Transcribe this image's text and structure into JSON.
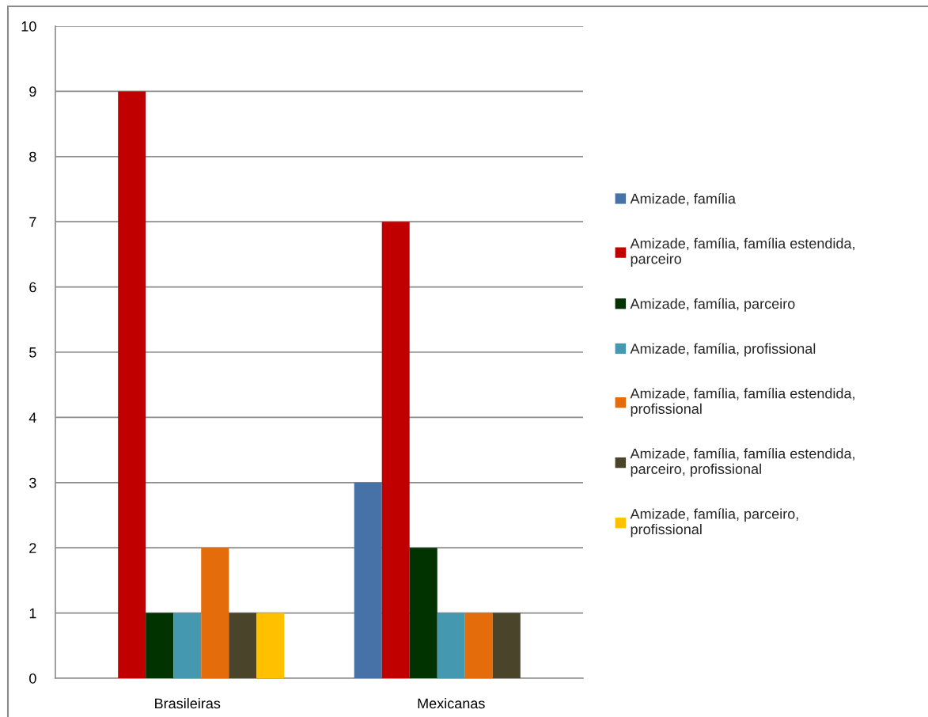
{
  "chart_data": {
    "type": "bar",
    "categories": [
      "Brasileiras",
      "Mexicanas"
    ],
    "ylim": [
      0,
      10
    ],
    "yticks": [
      0,
      1,
      2,
      3,
      4,
      5,
      6,
      7,
      8,
      9,
      10
    ],
    "grid": "y",
    "legend": "right",
    "series": [
      {
        "name": "Amizade, família",
        "color": "#4672a8",
        "values": [
          null,
          3
        ]
      },
      {
        "name": "Amizade, família, família estendida,\nparceiro",
        "color": "#c00000",
        "values": [
          9,
          7
        ]
      },
      {
        "name": "Amizade, família, parceiro",
        "color": "#003300",
        "values": [
          1,
          2
        ]
      },
      {
        "name": "Amizade, família, profissional",
        "color": "#4499b0",
        "values": [
          1,
          1
        ]
      },
      {
        "name": "Amizade, família, família estendida,\nprofissional",
        "color": "#e46c0a",
        "values": [
          2,
          1
        ]
      },
      {
        "name": "Amizade, família, família estendida,\nparceiro, profissional",
        "color": "#4a452a",
        "values": [
          1,
          1
        ]
      },
      {
        "name": "Amizade, família, parceiro,\nprofissional",
        "color": "#ffc000",
        "values": [
          1,
          null
        ]
      }
    ]
  }
}
